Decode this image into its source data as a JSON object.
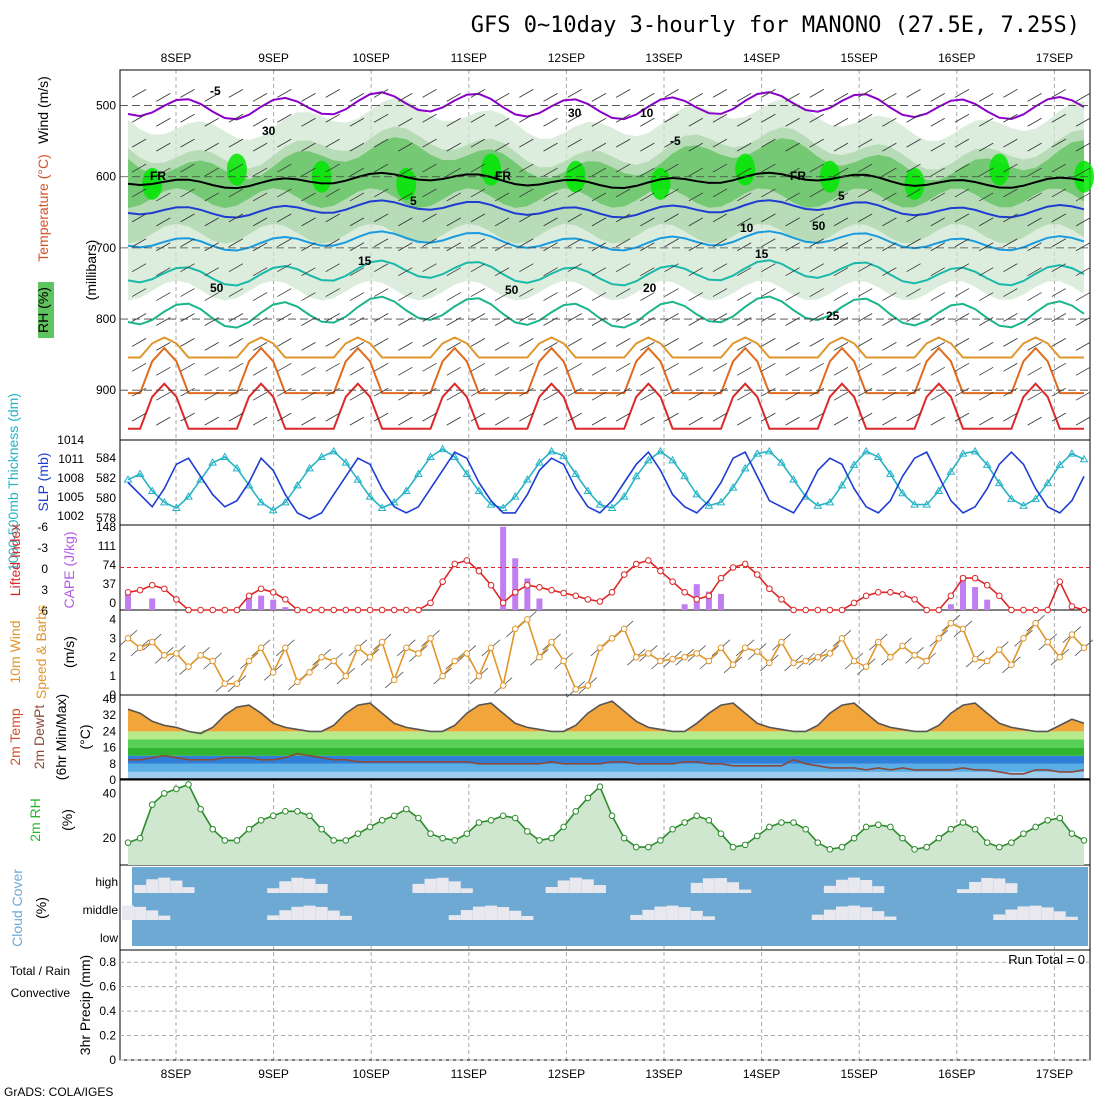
{
  "title": "GFS 0~10day 3-hourly for MANONO (27.5E, 7.25S)",
  "footer": "GrADS: COLA/IGES",
  "run_total": "Run Total = 0",
  "colors": {
    "purple": "#8a00c8",
    "blue": "#1e3cd2",
    "cyan": "#26b3c6",
    "orange": "#e0962a",
    "red": "#dc2828",
    "green_dark": "#2db42d",
    "rh_green": "#00e600",
    "cloud_blue": "#6ea9d4",
    "cloud_white": "#e8e8ee"
  },
  "chart_data": [
    {
      "type": "area",
      "panel": "upper-air",
      "title": "Temperature (°C) Wind (m/s) RH (%)",
      "ylabel": "(millibars)",
      "y_ticks": [
        "500",
        "600",
        "700",
        "800",
        "900"
      ],
      "x_ticks": [
        "8SEP",
        "9SEP",
        "10SEP",
        "11SEP",
        "12SEP",
        "13SEP",
        "14SEP",
        "15SEP",
        "16SEP",
        "17SEP"
      ],
      "contour_labels": [
        "-5",
        "FR",
        "FR",
        "FR",
        "-5",
        "5",
        "5",
        "10",
        "15",
        "15",
        "20",
        "25",
        "50",
        "50",
        "50",
        "30",
        "30",
        "10"
      ],
      "legend": [
        "Temperature (°C)",
        "Wind (m/s)",
        "RH (%)"
      ]
    },
    {
      "type": "line",
      "panel": "slp-thickness",
      "ylabel_left": "1000-500mb Thickness (dm)",
      "ylabel_right": "SLP (mb)",
      "left_ticks": [
        "584",
        "582",
        "580",
        "578"
      ],
      "right_ticks": [
        "1014",
        "1011",
        "1008",
        "1005",
        "1002"
      ],
      "series": [
        {
          "name": "SLP (mb)",
          "values": [
            1008,
            1006,
            1004,
            1007,
            1011,
            1012,
            1009,
            1006,
            1004,
            1005,
            1008,
            1012,
            1010,
            1006,
            1003,
            1002,
            1003,
            1006,
            1009,
            1012,
            1011,
            1007,
            1004,
            1003,
            1004,
            1007,
            1010,
            1013,
            1012,
            1008,
            1005,
            1003,
            1003,
            1006,
            1010,
            1012,
            1011,
            1007,
            1004,
            1003,
            1005,
            1008,
            1011,
            1013,
            1010,
            1006,
            1004,
            1003,
            1005,
            1008,
            1012,
            1013,
            1009,
            1005,
            1004,
            1003,
            1006,
            1010,
            1012,
            1011,
            1007,
            1004,
            1003,
            1005,
            1009,
            1012,
            1013,
            1009,
            1005,
            1003,
            1004,
            1007,
            1011,
            1013,
            1011,
            1007,
            1004,
            1003,
            1005,
            1009
          ]
        },
        {
          "name": "1000-500mb Thickness (dm)",
          "values": [
            581.5,
            582.0,
            580.5,
            579.5,
            579.0,
            580.0,
            581.5,
            583.0,
            583.5,
            582.5,
            581.0,
            579.5,
            578.8,
            579.5,
            581.0,
            582.5,
            583.5,
            584.0,
            583.0,
            581.5,
            580.0,
            579.0,
            579.5,
            580.5,
            582.0,
            583.5,
            584.2,
            583.5,
            582.0,
            580.5,
            579.3,
            579.0,
            580.0,
            581.5,
            583.0,
            584.0,
            583.6,
            582.0,
            580.5,
            579.3,
            579.0,
            580.0,
            581.8,
            583.2,
            584.0,
            583.2,
            581.8,
            580.2,
            579.2,
            579.5,
            580.8,
            582.5,
            583.8,
            584.0,
            583.0,
            581.5,
            580.0,
            579.2,
            579.5,
            581.0,
            582.8,
            584.0,
            583.5,
            582.0,
            580.3,
            579.3,
            579.3,
            580.5,
            582.2,
            583.8,
            584.0,
            582.8,
            581.2,
            579.8,
            579.2,
            579.8,
            581.2,
            582.8,
            583.8,
            583.3
          ]
        }
      ]
    },
    {
      "type": "bar",
      "panel": "lifted-cape",
      "ylabel_left": "Lifted Index",
      "ylabel_right": "CAPE (J/kg)",
      "left_ticks": [
        "-6",
        "-3",
        "0",
        "3",
        "6"
      ],
      "right_ticks": [
        "148",
        "111",
        "74",
        "37",
        "0"
      ],
      "series": [
        {
          "name": "CAPE (J/kg)",
          "values": [
            28,
            0,
            20,
            0,
            0,
            0,
            0,
            0,
            0,
            0,
            25,
            25,
            18,
            5,
            0,
            0,
            0,
            0,
            0,
            0,
            0,
            0,
            0,
            0,
            0,
            0,
            0,
            0,
            0,
            0,
            0,
            145,
            90,
            55,
            20,
            0,
            0,
            0,
            0,
            0,
            0,
            0,
            0,
            0,
            0,
            0,
            10,
            45,
            32,
            28,
            0,
            0,
            0,
            0,
            0,
            0,
            0,
            0,
            0,
            0,
            0,
            0,
            0,
            0,
            0,
            0,
            0,
            0,
            10,
            60,
            40,
            18,
            0,
            0,
            0,
            0,
            0,
            0,
            0,
            0
          ]
        },
        {
          "name": "Lifted Index",
          "values": [
            3.5,
            3.2,
            2.5,
            3.0,
            4.5,
            6.0,
            6,
            6,
            6,
            6,
            4,
            3,
            3.5,
            4.5,
            6,
            6,
            6,
            6,
            6,
            6,
            6,
            6,
            6,
            6,
            6,
            5,
            2,
            -0.5,
            -1,
            0.5,
            2.5,
            5,
            3.5,
            2.5,
            2.8,
            3.2,
            3.6,
            4,
            4.5,
            4.8,
            3.5,
            1,
            -0.5,
            -1,
            0.5,
            2,
            3.5,
            4.5,
            4,
            1.5,
            0,
            -0.5,
            1,
            3,
            4.5,
            6,
            6,
            6,
            6,
            6,
            5,
            4,
            3.5,
            3.5,
            3.8,
            4.5,
            6,
            6,
            4,
            1.5,
            1.5,
            2.5,
            4,
            6,
            6,
            6,
            6,
            2,
            5.5,
            6
          ]
        }
      ]
    },
    {
      "type": "line",
      "panel": "wind-10m",
      "ylabel": "10m Wind Speed & Barbs (m/s)",
      "y_ticks": [
        "0",
        "1",
        "2",
        "3",
        "4"
      ],
      "ylim": [
        0,
        4.5
      ],
      "series": [
        {
          "name": "10m Wind Speed (m/s)",
          "values": [
            3.0,
            2.5,
            2.8,
            2.1,
            2.2,
            1.5,
            2.1,
            1.8,
            0.6,
            0.6,
            1.8,
            2.5,
            1.2,
            2.5,
            0.7,
            1.2,
            2.0,
            1.8,
            1.0,
            2.5,
            2.0,
            2.8,
            0.8,
            2.5,
            2.2,
            3.0,
            1.0,
            1.8,
            2.2,
            1.0,
            2.5,
            0.5,
            3.5,
            4.0,
            2.0,
            2.8,
            1.8,
            0.3,
            0.5,
            2.5,
            3.0,
            3.5,
            2.0,
            2.2,
            1.8,
            1.9,
            2.0,
            2.2,
            1.8,
            2.5,
            1.6,
            2.5,
            2.3,
            1.7,
            2.8,
            1.7,
            1.8,
            2.0,
            2.2,
            3.0,
            1.8,
            1.5,
            2.8,
            2.0,
            2.6,
            2.1,
            1.8,
            3.0,
            3.8,
            3.5,
            1.9,
            1.8,
            2.4,
            1.6,
            3.0,
            3.8,
            2.8,
            2.0,
            3.2,
            2.5
          ]
        }
      ]
    },
    {
      "type": "area",
      "panel": "temp-dewpt",
      "ylabel": "2m Temp 2m DewPt (6hr Min/Max) (°C)",
      "y_ticks": [
        "40",
        "32",
        "24",
        "16",
        "8",
        "0"
      ],
      "ylim": [
        0,
        40
      ],
      "series": [
        {
          "name": "2m Temp (°C)",
          "values": [
            35,
            33,
            29,
            27,
            26,
            24,
            23,
            26,
            32,
            36,
            37,
            33,
            28,
            26,
            25,
            24,
            24,
            27,
            33,
            37,
            38,
            33,
            28,
            26,
            25,
            24,
            24,
            27,
            33,
            37,
            38,
            33,
            28,
            26,
            25,
            24,
            24,
            27,
            33,
            37,
            39,
            34,
            29,
            26,
            25,
            24,
            24,
            28,
            33,
            37,
            38,
            33,
            28,
            26,
            25,
            24,
            24,
            27,
            33,
            37,
            38,
            33,
            28,
            26,
            25,
            24,
            24,
            27,
            33,
            37,
            38,
            33,
            28,
            26,
            25,
            24,
            24,
            27,
            30,
            28
          ]
        },
        {
          "name": "2m DewPt (°C)",
          "values": [
            10,
            10,
            11,
            12,
            11,
            10,
            10,
            10,
            11,
            11,
            11,
            10,
            10,
            11,
            13,
            12,
            11,
            10,
            10,
            9,
            9,
            9,
            9,
            9,
            9,
            9,
            9,
            9,
            9,
            8,
            8,
            8,
            8,
            8,
            8,
            9,
            8,
            8,
            8,
            8,
            9,
            9,
            8,
            8,
            8,
            8,
            9,
            9,
            8,
            8,
            7,
            7,
            7,
            7,
            7,
            10,
            8,
            7,
            6,
            6,
            6,
            5,
            6,
            5,
            6,
            5,
            5,
            5,
            5,
            6,
            5,
            5,
            4,
            3,
            3,
            5,
            5,
            4,
            4,
            5
          ]
        }
      ]
    },
    {
      "type": "area",
      "panel": "rh-2m",
      "ylabel": "2m RH (%)",
      "y_ticks": [
        "40",
        "20"
      ],
      "ylim": [
        8,
        46
      ],
      "series": [
        {
          "name": "2m RH (%)",
          "values": [
            18,
            20,
            35,
            40,
            42,
            44,
            33,
            24,
            19,
            19,
            24,
            28,
            30,
            32,
            32,
            30,
            24,
            19,
            19,
            22,
            25,
            28,
            30,
            33,
            29,
            22,
            20,
            19,
            22,
            27,
            28,
            30,
            29,
            23,
            19,
            20,
            25,
            32,
            38,
            43,
            30,
            20,
            16,
            16,
            19,
            24,
            27,
            30,
            28,
            22,
            16,
            17,
            21,
            25,
            27,
            27,
            24,
            18,
            15,
            16,
            20,
            25,
            26,
            25,
            20,
            15,
            16,
            20,
            24,
            27,
            24,
            18,
            16,
            18,
            22,
            25,
            28,
            29,
            22,
            19
          ]
        }
      ]
    },
    {
      "type": "heatmap",
      "panel": "cloud-cover",
      "ylabel": "Cloud Cover (%)",
      "y_ticks": [
        "high",
        "middle",
        "low"
      ]
    },
    {
      "type": "bar",
      "panel": "precip",
      "ylabel": "3hr Precip (mm)",
      "legend": [
        "Total / Rain",
        "Convective"
      ],
      "y_ticks": [
        "0.8",
        "0.6",
        "0.4",
        "0.2",
        "0"
      ],
      "ylim": [
        0,
        0.9
      ],
      "values": [],
      "x_ticks": [
        "8SEP",
        "9SEP",
        "10SEP",
        "11SEP",
        "12SEP",
        "13SEP",
        "14SEP",
        "15SEP",
        "16SEP",
        "17SEP"
      ]
    }
  ]
}
